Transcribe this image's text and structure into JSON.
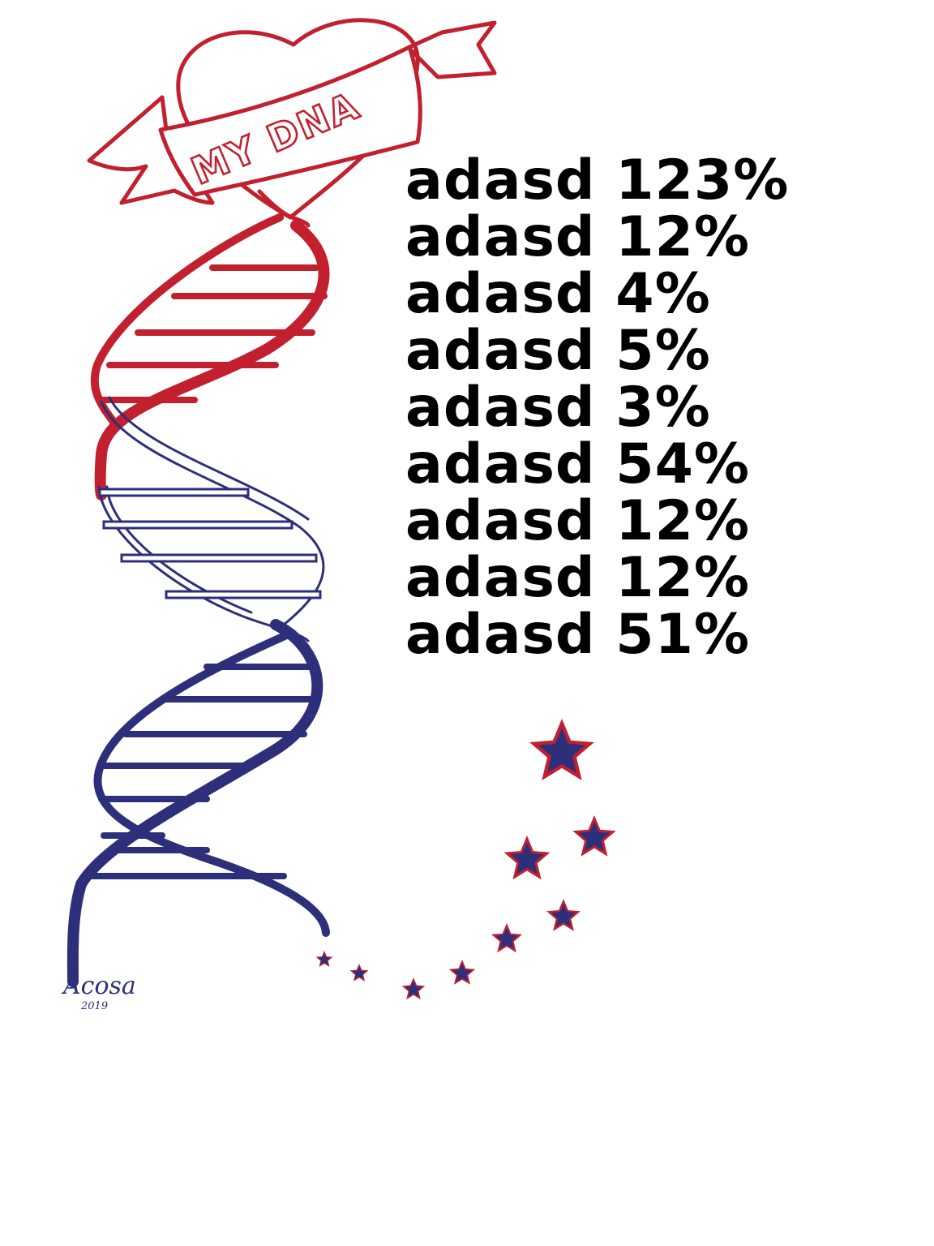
{
  "banner": {
    "text": "MY DNA"
  },
  "stats": [
    {
      "label": "adasd",
      "value": "123%"
    },
    {
      "label": "adasd",
      "value": "12%"
    },
    {
      "label": "adasd",
      "value": "4%"
    },
    {
      "label": "adasd",
      "value": "5%"
    },
    {
      "label": "adasd",
      "value": "3%"
    },
    {
      "label": "adasd",
      "value": "54%"
    },
    {
      "label": "adasd",
      "value": "12%"
    },
    {
      "label": "adasd",
      "value": "12%"
    },
    {
      "label": "adasd",
      "value": "51%"
    }
  ],
  "signature": {
    "name": "Acosa",
    "year": "2019"
  },
  "colors": {
    "red": "#c2202f",
    "navy": "#2e2f7a",
    "text": "#000000",
    "background": "#ffffff"
  },
  "icons": [
    "heart-icon",
    "banner-ribbon",
    "dna-helix",
    "star-icon"
  ]
}
